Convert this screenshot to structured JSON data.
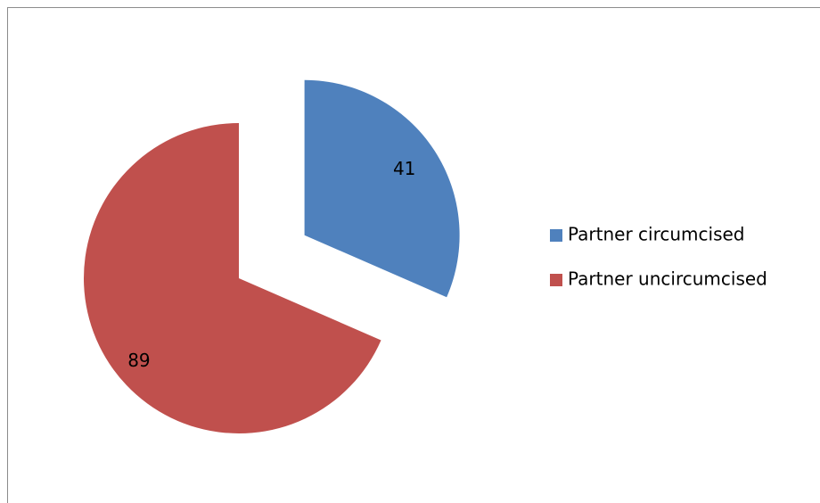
{
  "chart_data": {
    "type": "pie",
    "categories": [
      "Partner circumcised",
      "Partner uncircumcised"
    ],
    "values": [
      41,
      89
    ],
    "colors": [
      "#4f81bd",
      "#c0504d"
    ],
    "legend": "right"
  }
}
